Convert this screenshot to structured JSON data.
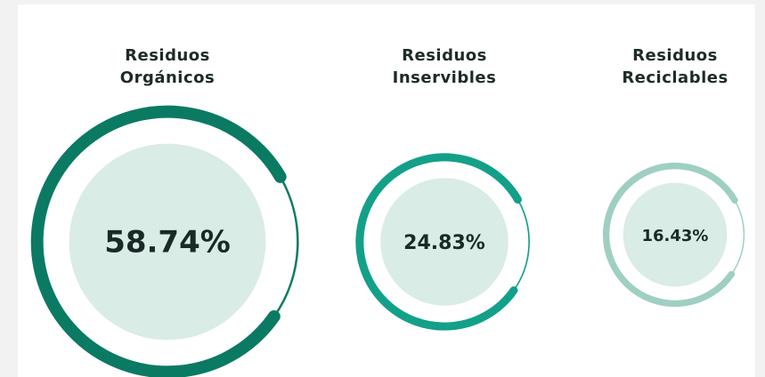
{
  "chart_data": {
    "type": "ring",
    "categories": [
      "Residuos Orgánicos",
      "Residuos Inservibles",
      "Residuos Reciclables"
    ],
    "values": [
      58.74,
      24.83,
      16.43
    ],
    "value_labels": [
      "58.74%",
      "24.83%",
      "16.43%"
    ],
    "colors": [
      "#0b7a63",
      "#13a089",
      "#9fcfc2"
    ]
  }
}
